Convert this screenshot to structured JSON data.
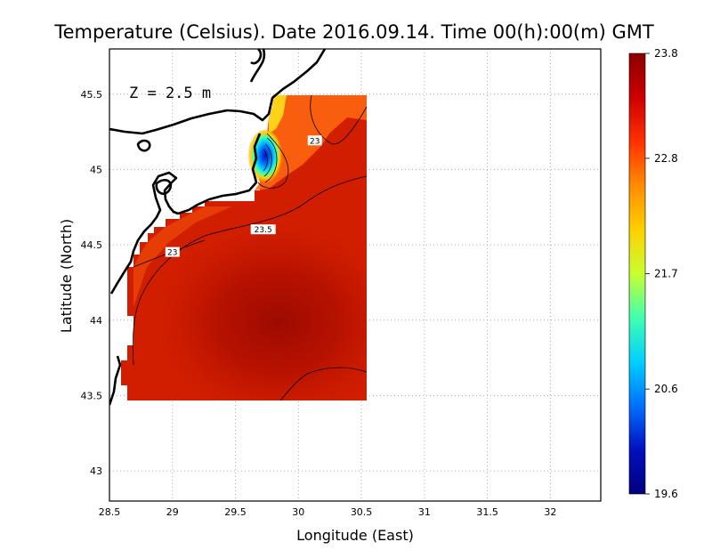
{
  "title": "Temperature (Celsius). Date 2016.09.14. Time 00(h):00(m) GMT",
  "depth_label": "Z = 2.5 m",
  "map": {
    "xlabel": "Longitude (East)",
    "ylabel": "Latitude (North)",
    "xlim": [
      28.5,
      32.4
    ],
    "ylim": [
      42.8,
      45.8
    ],
    "x_ticks": [
      "28.5",
      "29",
      "29.5",
      "30",
      "30.5",
      "31",
      "31.5",
      "32"
    ],
    "y_ticks": [
      "43",
      "43.5",
      "44",
      "44.5",
      "45",
      "45.5"
    ],
    "grid": true,
    "grid_style": "dotted"
  },
  "colorbar": {
    "min": 19.6,
    "max": 23.8,
    "tick_labels": [
      "23.8",
      "22.8",
      "21.7",
      "20.6",
      "19.6"
    ],
    "colors": [
      "#8b0000",
      "#cc0000",
      "#ff3000",
      "#ff8c00",
      "#ffd000",
      "#c8ff30",
      "#40ffb0",
      "#00d0ff",
      "#0070ff",
      "#0010c0",
      "#00007f"
    ]
  },
  "contour_labels": [
    {
      "text": "23",
      "lon": 30.13,
      "lat": 45.19
    },
    {
      "text": "23.5",
      "lon": 29.72,
      "lat": 44.6
    },
    {
      "text": "23",
      "lon": 29.0,
      "lat": 44.45
    }
  ]
}
